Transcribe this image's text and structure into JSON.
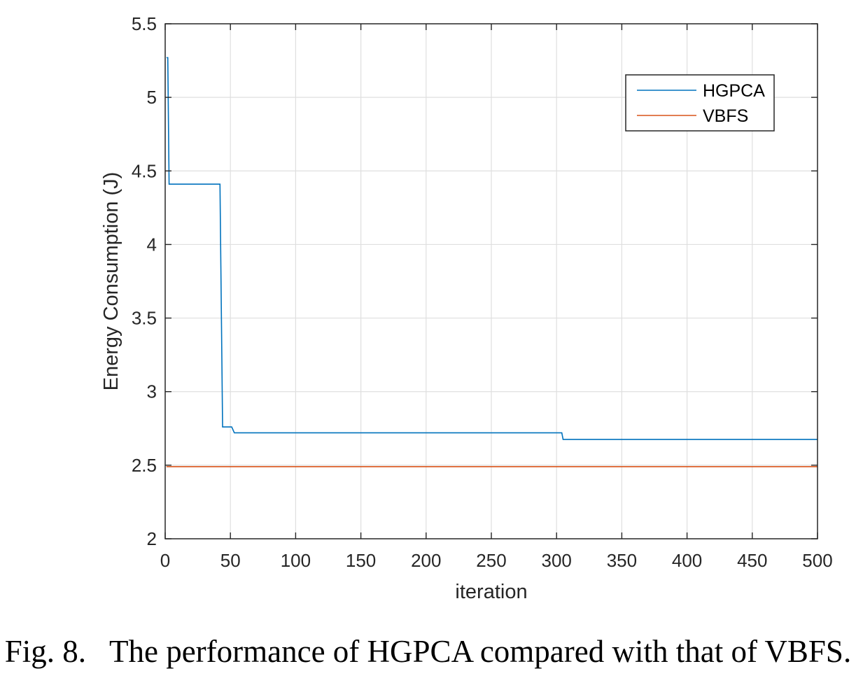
{
  "caption": "Fig. 8.   The performance of HGPCA compared with that of VBFS.",
  "chart_data": {
    "type": "line",
    "xlabel": "iteration",
    "ylabel": "Energy Consumption (J)",
    "xlim": [
      0,
      500
    ],
    "ylim": [
      2,
      5.5
    ],
    "xticks": [
      0,
      50,
      100,
      150,
      200,
      250,
      300,
      350,
      400,
      450,
      500
    ],
    "yticks": [
      2,
      2.5,
      3,
      3.5,
      4,
      4.5,
      5,
      5.5
    ],
    "xtick_labels": [
      "0",
      "50",
      "100",
      "150",
      "200",
      "250",
      "300",
      "350",
      "400",
      "450",
      "500"
    ],
    "ytick_labels": [
      "2",
      "2.5",
      "3",
      "3.5",
      "4",
      "4.5",
      "5",
      "5.5"
    ],
    "grid": true,
    "legend_position": "top-right",
    "series": [
      {
        "name": "HGPCA",
        "color": "#0072BD",
        "points": [
          [
            1,
            5.27
          ],
          [
            2,
            5.27
          ],
          [
            3,
            4.41
          ],
          [
            42,
            4.41
          ],
          [
            44,
            2.76
          ],
          [
            51,
            2.76
          ],
          [
            53,
            2.72
          ],
          [
            304,
            2.72
          ],
          [
            305,
            2.675
          ],
          [
            500,
            2.675
          ]
        ]
      },
      {
        "name": "VBFS",
        "color": "#D95319",
        "points": [
          [
            1,
            2.49
          ],
          [
            500,
            2.49
          ]
        ]
      }
    ]
  }
}
